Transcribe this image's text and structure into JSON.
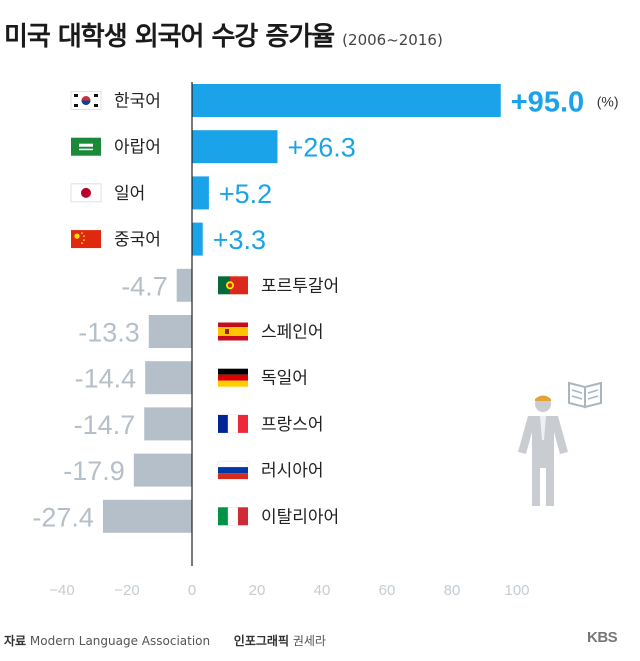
{
  "title": "미국 대학생 외국어 수강 증가율",
  "period": "(2006~2016)",
  "unit": "(%)",
  "chart_data": {
    "type": "bar",
    "orientation": "horizontal",
    "title": "미국 대학생 외국어 수강 증가율",
    "xlim": [
      -40,
      100
    ],
    "xticks": [
      -40,
      -20,
      0,
      20,
      40,
      60,
      80,
      100
    ],
    "categories": [
      "한국어",
      "아랍어",
      "일어",
      "중국어",
      "포르투갈어",
      "스페인어",
      "독일어",
      "프랑스어",
      "러시아어",
      "이탈리아어"
    ],
    "values": [
      95.0,
      26.3,
      5.2,
      3.3,
      -4.7,
      -13.3,
      -14.4,
      -14.7,
      -17.9,
      -27.4
    ],
    "value_labels": [
      "+95.0",
      "+26.3",
      "+5.2",
      "+3.3",
      "-4.7",
      "-13.3",
      "-14.4",
      "-14.7",
      "-17.9",
      "-27.4"
    ],
    "flags": [
      "korea-flag-icon",
      "saudi-arabia-flag-icon",
      "japan-flag-icon",
      "china-flag-icon",
      "portugal-flag-icon",
      "spain-flag-icon",
      "germany-flag-icon",
      "france-flag-icon",
      "russia-flag-icon",
      "italy-flag-icon"
    ],
    "colors": {
      "positive": "#1aa3e8",
      "negative": "#b5bfc9",
      "axis": "#222222",
      "ticks": "#c4ccd4"
    },
    "grid": false
  },
  "footer": {
    "source_label": "자료",
    "source": "Modern Language Association",
    "graphic_label": "인포그래픽",
    "graphic_author": "권세라"
  },
  "logo": "KBS",
  "illustration": {
    "figure": "person-icon",
    "book": "open-book-icon"
  }
}
